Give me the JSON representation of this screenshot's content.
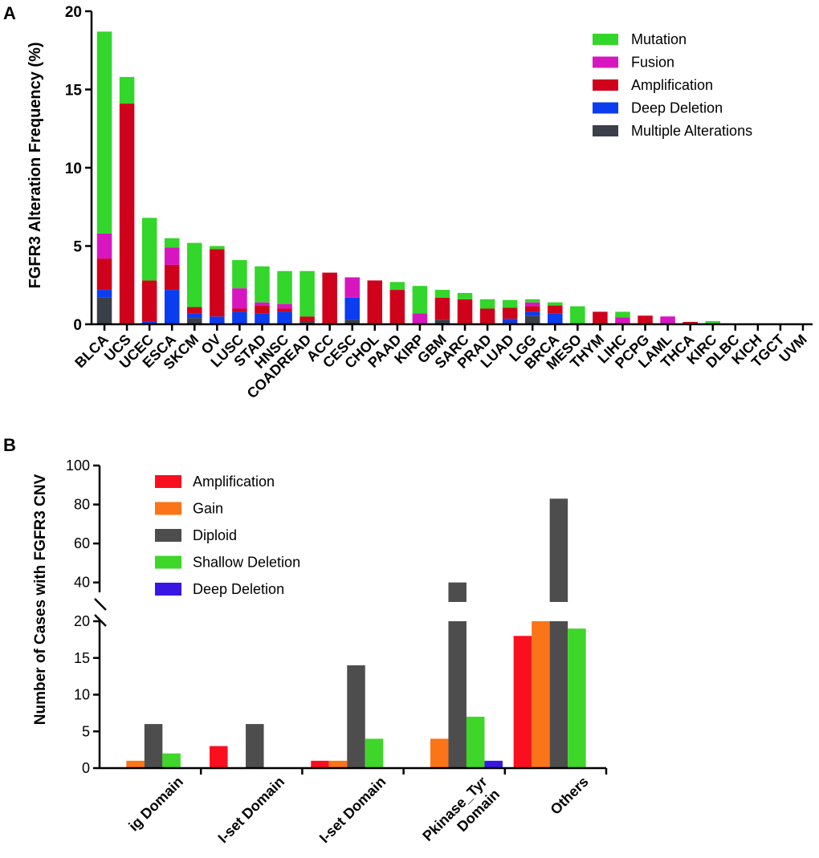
{
  "chart_data": [
    {
      "panel": "A",
      "type": "bar",
      "stacked": true,
      "ylabel": "FGFR3 Alteration Frequency (%)",
      "ylim": [
        0,
        20
      ],
      "yticks": [
        0,
        5,
        10,
        15,
        20
      ],
      "legend_position": "top-right",
      "categories": [
        "BLCA",
        "UCS",
        "UCEC",
        "ESCA",
        "SKCM",
        "OV",
        "LUSC",
        "STAD",
        "HNSC",
        "COADREAD",
        "ACC",
        "CESC",
        "CHOL",
        "PAAD",
        "KIRP",
        "GBM",
        "SARC",
        "PRAD",
        "LUAD",
        "LGG",
        "BRCA",
        "MESO",
        "THYM",
        "LIHC",
        "PCPG",
        "LAML",
        "THCA",
        "KIRC",
        "DLBC",
        "KICH",
        "TGCT",
        "UVM"
      ],
      "series": [
        {
          "name": "Multiple Alterations",
          "color": "#3a3f4a",
          "values": [
            1.7,
            0,
            0,
            0,
            0.4,
            0,
            0,
            0,
            0,
            0.15,
            0,
            0.3,
            0,
            0,
            0,
            0.3,
            0,
            0,
            0.1,
            0.55,
            0,
            0,
            0,
            0,
            0,
            0,
            0,
            0,
            0,
            0,
            0,
            0
          ]
        },
        {
          "name": "Deep Deletion",
          "color": "#0a3cf0",
          "values": [
            0.5,
            0,
            0.2,
            2.2,
            0.3,
            0.5,
            0.8,
            0.7,
            0.8,
            0,
            0,
            1.4,
            0,
            0,
            0,
            0,
            0,
            0,
            0.25,
            0.25,
            0.7,
            0,
            0,
            0,
            0,
            0,
            0,
            0,
            0,
            0,
            0,
            0
          ]
        },
        {
          "name": "Amplification",
          "color": "#d0021b",
          "values": [
            2.0,
            14.1,
            2.6,
            1.6,
            0.4,
            4.3,
            0.2,
            0.5,
            0.2,
            0.35,
            3.3,
            0,
            2.8,
            2.2,
            0,
            1.4,
            1.6,
            1.0,
            0.7,
            0.35,
            0.5,
            0,
            0.8,
            0,
            0.55,
            0,
            0.15,
            0,
            0,
            0,
            0,
            0
          ]
        },
        {
          "name": "Fusion",
          "color": "#d816c0",
          "values": [
            1.6,
            0,
            0,
            1.1,
            0,
            0,
            1.3,
            0.2,
            0.3,
            0,
            0,
            1.3,
            0,
            0,
            0.7,
            0,
            0,
            0,
            0,
            0.25,
            0,
            0,
            0,
            0.45,
            0,
            0.5,
            0,
            0,
            0,
            0,
            0,
            0
          ]
        },
        {
          "name": "Mutation",
          "color": "#33d62a",
          "values": [
            12.9,
            1.7,
            4.0,
            0.6,
            4.1,
            0.2,
            1.8,
            2.3,
            2.1,
            2.9,
            0,
            0,
            0,
            0.5,
            1.75,
            0.5,
            0.4,
            0.6,
            0.5,
            0.2,
            0.2,
            1.15,
            0,
            0.35,
            0,
            0,
            0,
            0.2,
            0,
            0,
            0,
            0
          ]
        }
      ]
    },
    {
      "panel": "B",
      "type": "bar",
      "grouped": true,
      "ylabel": "Number of Cases with FGFR3 CNV",
      "broken_axis": true,
      "ylim_lower": [
        0,
        20
      ],
      "ylim_upper": [
        30,
        100
      ],
      "yticks_lower": [
        0,
        5,
        10,
        15,
        20
      ],
      "yticks_upper": [
        40,
        60,
        80,
        100
      ],
      "legend_position": "top-left",
      "categories": [
        "ig Domain",
        "I-set Domain",
        "I-set Domain",
        "Pkinase_Tyr Domain",
        "Others"
      ],
      "series": [
        {
          "name": "Amplification",
          "color": "#fa0f1e",
          "values": [
            0,
            3,
            1,
            0,
            18
          ]
        },
        {
          "name": "Gain",
          "color": "#fb7417",
          "values": [
            1,
            0,
            1,
            4,
            20
          ]
        },
        {
          "name": "Diploid",
          "color": "#4d4d4d",
          "values": [
            6,
            6,
            14,
            40,
            83
          ]
        },
        {
          "name": "Shallow Deletion",
          "color": "#3fd62a",
          "values": [
            2,
            0,
            4,
            7,
            19
          ]
        },
        {
          "name": "Deep Deletion",
          "color": "#3a16e4",
          "values": [
            0,
            0,
            0,
            1,
            0
          ]
        }
      ]
    }
  ]
}
